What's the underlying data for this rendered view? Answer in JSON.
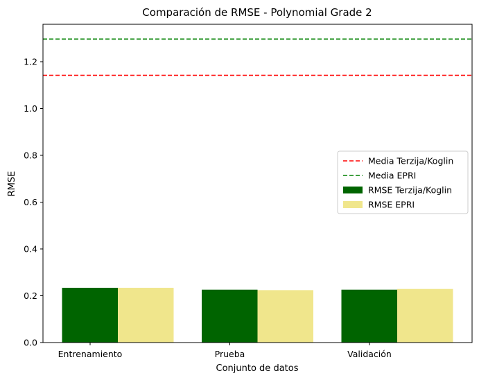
{
  "chart_data": {
    "type": "bar",
    "title": "Comparación de RMSE - Polynomial Grade 2",
    "xlabel": "Conjunto de datos",
    "ylabel": "RMSE",
    "categories": [
      "Entrenamiento",
      "Prueba",
      "Validación"
    ],
    "ylim": [
      0,
      1.36
    ],
    "yticks": [
      0.0,
      0.2,
      0.4,
      0.6,
      0.8,
      1.0,
      1.2
    ],
    "ytick_labels": [
      "0.0",
      "0.2",
      "0.4",
      "0.6",
      "0.8",
      "1.0",
      "1.2"
    ],
    "series": [
      {
        "name": "RMSE Terzija/Koglin",
        "color": "#006400",
        "values": [
          0.234,
          0.226,
          0.226
        ]
      },
      {
        "name": "RMSE EPRI",
        "color": "#f0e68c",
        "values": [
          0.234,
          0.224,
          0.229
        ]
      }
    ],
    "reference_lines": [
      {
        "name": "Media Terzija/Koglin",
        "value": 1.142,
        "color": "#ff0000",
        "style": "dashed"
      },
      {
        "name": "Media EPRI",
        "value": 1.297,
        "color": "#008000",
        "style": "dashed"
      }
    ],
    "legend": {
      "placement": "center-right",
      "entries": [
        {
          "label": "Media Terzija/Koglin",
          "kind": "line",
          "color": "#ff0000"
        },
        {
          "label": "Media EPRI",
          "kind": "line",
          "color": "#008000"
        },
        {
          "label": "RMSE Terzija/Koglin",
          "kind": "patch",
          "color": "#006400"
        },
        {
          "label": "RMSE EPRI",
          "kind": "patch",
          "color": "#f0e68c"
        }
      ]
    },
    "grid": false
  }
}
